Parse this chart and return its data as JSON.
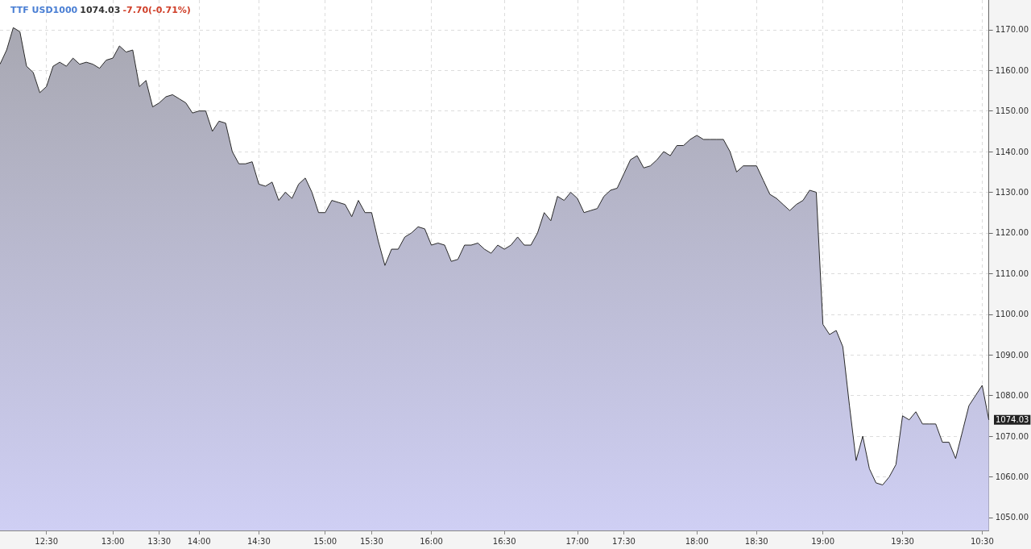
{
  "chart_data": {
    "type": "area",
    "title": "TTF USD1000",
    "annotations": [
      "1074.03",
      "-7.70(-0.71%)",
      "1074.03"
    ],
    "categories": [
      null,
      null,
      null,
      null,
      null,
      null,
      null,
      "12:30",
      null,
      null,
      null,
      null,
      null,
      null,
      null,
      null,
      null,
      "13:00",
      null,
      null,
      null,
      null,
      null,
      null,
      "13:30",
      null,
      null,
      null,
      null,
      null,
      "14:00",
      null,
      null,
      null,
      null,
      null,
      null,
      null,
      null,
      "14:30",
      null,
      null,
      null,
      null,
      null,
      null,
      null,
      null,
      null,
      "15:00",
      null,
      null,
      null,
      null,
      null,
      null,
      "15:30",
      null,
      null,
      null,
      null,
      null,
      null,
      null,
      null,
      "16:00",
      null,
      null,
      null,
      null,
      null,
      null,
      null,
      null,
      null,
      null,
      "16:30",
      null,
      null,
      null,
      null,
      null,
      null,
      null,
      null,
      null,
      null,
      "17:00",
      null,
      null,
      null,
      null,
      null,
      null,
      "17:30",
      null,
      null,
      null,
      null,
      null,
      null,
      null,
      null,
      null,
      null,
      "18:00",
      null,
      null,
      null,
      null,
      null,
      null,
      null,
      null,
      "18:30",
      null,
      null,
      null,
      null,
      null,
      null,
      null,
      null,
      null,
      "19:00",
      null,
      null,
      null,
      null,
      null,
      null,
      null,
      null,
      null,
      null,
      null,
      "19:30",
      null,
      null,
      null,
      null,
      null,
      null,
      null,
      null,
      null,
      null,
      null,
      "10:30",
      null
    ],
    "series": [
      {
        "color": "#cfcff4",
        "values": [
          1161.5,
          1165,
          1170.5,
          1169.5,
          1161,
          1159.5,
          1154.5,
          1156,
          1161,
          1162,
          1161,
          1163,
          1161.5,
          1162,
          1161.5,
          1160.5,
          1162.5,
          1163,
          1166,
          1164.5,
          1165,
          1156,
          1157.5,
          1151,
          1152,
          1153.5,
          1154,
          1153,
          1152,
          1149.5,
          1150,
          1150,
          1145,
          1147.5,
          1147,
          1140,
          1137,
          1137,
          1137.5,
          1132,
          1131.5,
          1132.5,
          1128,
          1130,
          1128.5,
          1132,
          1133.5,
          1130,
          1125,
          1125,
          1128,
          1127.5,
          1127,
          1124,
          1128,
          1125,
          1125,
          1118,
          1112,
          1116,
          1116,
          1119,
          1120,
          1121.5,
          1121,
          1117,
          1117.5,
          1117,
          1113,
          1113.5,
          1117,
          1117,
          1117.5,
          1116,
          1115,
          1117,
          1116,
          1117,
          1119,
          1117,
          1117,
          1120,
          1125,
          1123,
          1129,
          1128,
          1130,
          1128.5,
          1125,
          1125.5,
          1126,
          1129,
          1130.5,
          1131,
          1134.5,
          1138,
          1139,
          1136,
          1136.5,
          1138,
          1140,
          1139,
          1141.5,
          1141.5,
          1143,
          1144,
          1143,
          1143,
          1143,
          1143,
          1140,
          1135,
          1136.5,
          1136.5,
          1136.5,
          1133,
          1129.5,
          1128.5,
          1127,
          1125.5,
          1127,
          1128,
          1130.5,
          1130,
          1097.5,
          1095,
          1096,
          1092,
          1077.5,
          1064,
          1070,
          1062,
          1058.5,
          1058,
          1060,
          1063,
          1075,
          1074,
          1076,
          1073,
          1073,
          1073,
          1068.5,
          1068.5,
          1064.5,
          1071,
          1077.5,
          1080,
          1082.5,
          1074
        ]
      }
    ],
    "ylim": [
      1046.8,
      1177.3
    ],
    "yticks": [
      {
        "value": 1050,
        "label": "1050.00"
      },
      {
        "value": 1060,
        "label": "1060.00"
      },
      {
        "value": 1070,
        "label": "1070.00"
      },
      {
        "value": 1080,
        "label": "1080.00"
      },
      {
        "value": 1090,
        "label": "1090.00"
      },
      {
        "value": 1100,
        "label": "1100.00"
      },
      {
        "value": 1110,
        "label": "1110.00"
      },
      {
        "value": 1120,
        "label": "1120.00"
      },
      {
        "value": 1130,
        "label": "1130.00"
      },
      {
        "value": 1140,
        "label": "1140.00"
      },
      {
        "value": 1150,
        "label": "1150.00"
      },
      {
        "value": 1160,
        "label": "1160.00"
      },
      {
        "value": 1170,
        "label": "1170.00"
      }
    ],
    "grid": true,
    "marker": "none"
  }
}
